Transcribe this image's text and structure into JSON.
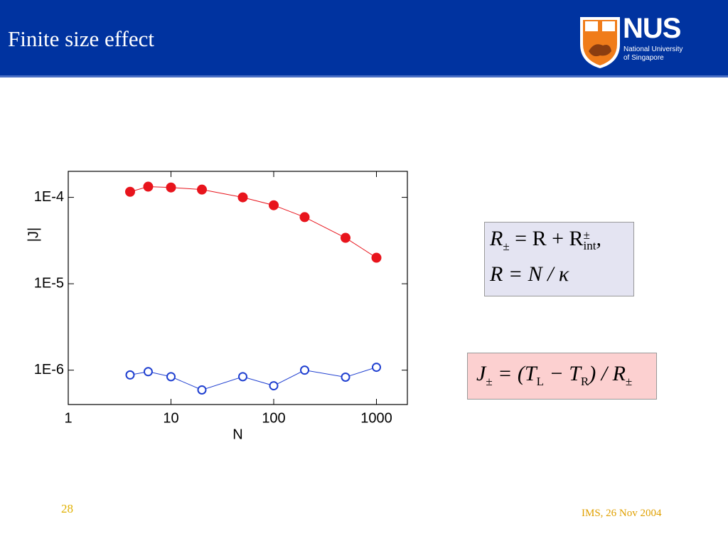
{
  "header": {
    "title": "Finite size effect",
    "logo": {
      "name": "NUS",
      "line1": "National University",
      "line2": "of Singapore"
    }
  },
  "chart_data": {
    "type": "line",
    "xlabel": "N",
    "ylabel": "|J|",
    "x": [
      4,
      6,
      10,
      20,
      50,
      100,
      200,
      500,
      1000
    ],
    "series": [
      {
        "color": "#e8141c",
        "marker": "filled",
        "values": [
          0.000116,
          0.000133,
          0.00013,
          0.000123,
          0.0001,
          8.1e-05,
          5.9e-05,
          3.4e-05,
          2e-05
        ]
      },
      {
        "color": "#1f3fd0",
        "marker": "open",
        "values": [
          8.8e-07,
          9.6e-07,
          8.4e-07,
          5.9e-07,
          8.4e-07,
          6.6e-07,
          1e-06,
          8.3e-07,
          1.08e-06
        ]
      }
    ],
    "xscale": "log",
    "yscale": "log",
    "xlim": [
      1,
      2000
    ],
    "ylim": [
      4e-07,
      0.0002
    ],
    "xticks": [
      1,
      10,
      100,
      1000
    ],
    "yticks": [
      {
        "value": 1e-06,
        "label": "1E-6"
      },
      {
        "value": 1e-05,
        "label": "1E-5"
      },
      {
        "value": 0.0001,
        "label": "1E-4"
      }
    ]
  },
  "formulas": {
    "box1": {
      "line1": {
        "a": "R",
        "a_sub": "±",
        "b": " = R + R",
        "b_sup": "±",
        "b_sub": "int",
        "c": ","
      },
      "line2": "R = N / κ"
    },
    "box2": {
      "a": "J",
      "a_sub": "±",
      "b": " = (T",
      "b_sub": "L",
      "c": " − T",
      "c_sub": "R",
      "d": ") / R",
      "d_sub": "±"
    }
  },
  "footer": {
    "page": "28",
    "note": "IMS, 26 Nov 2004"
  }
}
